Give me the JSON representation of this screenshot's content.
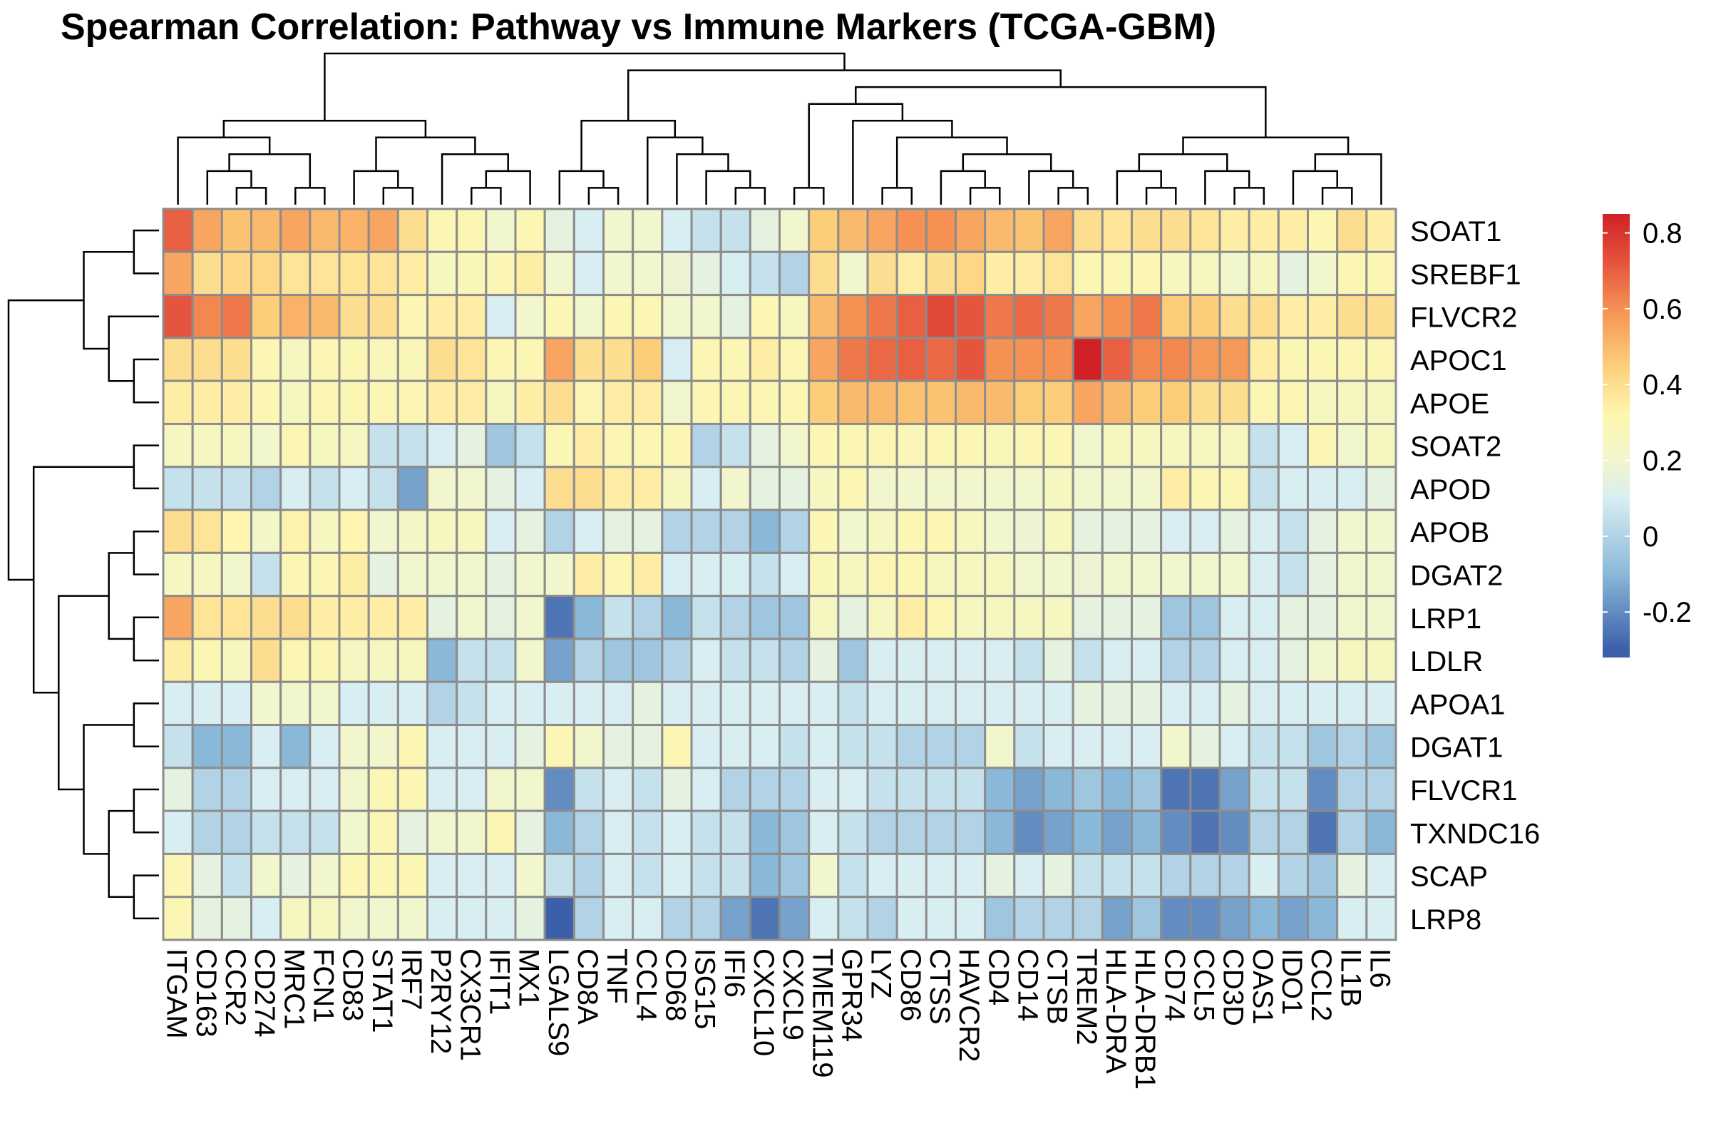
{
  "chart_data": {
    "type": "heatmap",
    "title": "Spearman Correlation: Pathway vs Immune Markers (TCGA-GBM)",
    "xlabel": "",
    "ylabel": "",
    "columns": [
      "ITGAM",
      "CD163",
      "CCR2",
      "CD274",
      "MRC1",
      "FCN1",
      "CD83",
      "STAT1",
      "IRF7",
      "P2RY12",
      "CX3CR1",
      "IFIT1",
      "MX1",
      "LGALS9",
      "CD8A",
      "TNF",
      "CCL4",
      "CD68",
      "ISG15",
      "IFI6",
      "CXCL10",
      "CXCL9",
      "TMEM119",
      "GPR34",
      "LYZ",
      "CD86",
      "CTSS",
      "HAVCR2",
      "CD4",
      "CD14",
      "CTSB",
      "TREM2",
      "HLA-DRA",
      "HLA-DRB1",
      "CD74",
      "CCL5",
      "CD3D",
      "OAS1",
      "IDO1",
      "CCL2",
      "IL1B",
      "IL6"
    ],
    "rows": [
      "SOAT1",
      "SREBF1",
      "FLVCR2",
      "APOC1",
      "APOE",
      "SOAT2",
      "APOD",
      "APOB",
      "DGAT2",
      "LRP1",
      "LDLR",
      "APOA1",
      "DGAT1",
      "FLVCR1",
      "TXNDC16",
      "SCAP",
      "LRP8"
    ],
    "values": [
      [
        0.7,
        0.55,
        0.48,
        0.5,
        0.55,
        0.5,
        0.52,
        0.55,
        0.4,
        0.3,
        0.3,
        0.2,
        0.3,
        0.15,
        0.1,
        0.2,
        0.2,
        0.1,
        0.05,
        0.05,
        0.15,
        0.2,
        0.45,
        0.5,
        0.55,
        0.6,
        0.6,
        0.55,
        0.5,
        0.48,
        0.55,
        0.4,
        0.38,
        0.4,
        0.4,
        0.38,
        0.35,
        0.35,
        0.35,
        0.3,
        0.4,
        0.35
      ],
      [
        0.55,
        0.4,
        0.42,
        0.42,
        0.38,
        0.38,
        0.38,
        0.38,
        0.35,
        0.25,
        0.28,
        0.3,
        0.35,
        0.2,
        0.1,
        0.2,
        0.2,
        0.18,
        0.15,
        0.1,
        0.05,
        0.0,
        0.4,
        0.2,
        0.4,
        0.35,
        0.4,
        0.42,
        0.35,
        0.35,
        0.38,
        0.3,
        0.3,
        0.3,
        0.25,
        0.25,
        0.2,
        0.25,
        0.15,
        0.2,
        0.3,
        0.3
      ],
      [
        0.72,
        0.62,
        0.65,
        0.45,
        0.52,
        0.5,
        0.4,
        0.4,
        0.3,
        0.35,
        0.35,
        0.1,
        0.2,
        0.3,
        0.2,
        0.3,
        0.3,
        0.2,
        0.2,
        0.15,
        0.3,
        0.25,
        0.5,
        0.6,
        0.65,
        0.7,
        0.75,
        0.72,
        0.65,
        0.68,
        0.65,
        0.55,
        0.6,
        0.65,
        0.45,
        0.45,
        0.4,
        0.4,
        0.35,
        0.35,
        0.4,
        0.4
      ],
      [
        0.4,
        0.4,
        0.4,
        0.3,
        0.25,
        0.3,
        0.3,
        0.28,
        0.28,
        0.4,
        0.38,
        0.3,
        0.3,
        0.55,
        0.4,
        0.4,
        0.45,
        0.1,
        0.3,
        0.3,
        0.35,
        0.3,
        0.55,
        0.65,
        0.68,
        0.7,
        0.68,
        0.72,
        0.6,
        0.6,
        0.6,
        0.85,
        0.7,
        0.62,
        0.62,
        0.58,
        0.58,
        0.35,
        0.3,
        0.3,
        0.3,
        0.3
      ],
      [
        0.35,
        0.35,
        0.35,
        0.3,
        0.25,
        0.3,
        0.3,
        0.3,
        0.3,
        0.35,
        0.35,
        0.25,
        0.35,
        0.4,
        0.3,
        0.35,
        0.35,
        0.2,
        0.3,
        0.3,
        0.3,
        0.3,
        0.45,
        0.5,
        0.5,
        0.48,
        0.48,
        0.5,
        0.5,
        0.45,
        0.45,
        0.55,
        0.5,
        0.45,
        0.45,
        0.4,
        0.4,
        0.3,
        0.3,
        0.25,
        0.25,
        0.25
      ],
      [
        0.25,
        0.25,
        0.25,
        0.2,
        0.3,
        0.25,
        0.25,
        0.05,
        0.05,
        0.1,
        0.15,
        -0.05,
        0.05,
        0.3,
        0.35,
        0.3,
        0.3,
        0.3,
        0.0,
        0.05,
        0.15,
        0.2,
        0.3,
        0.3,
        0.3,
        0.28,
        0.3,
        0.3,
        0.28,
        0.3,
        0.3,
        0.2,
        0.25,
        0.25,
        0.25,
        0.25,
        0.25,
        0.05,
        0.1,
        0.3,
        0.2,
        0.25
      ],
      [
        0.05,
        0.05,
        0.05,
        0.0,
        0.1,
        0.05,
        0.1,
        0.05,
        -0.15,
        0.2,
        0.2,
        0.15,
        0.1,
        0.4,
        0.4,
        0.35,
        0.35,
        0.25,
        0.1,
        0.2,
        0.15,
        0.15,
        0.25,
        0.3,
        0.2,
        0.2,
        0.2,
        0.2,
        0.2,
        0.2,
        0.25,
        0.2,
        0.2,
        0.2,
        0.35,
        0.3,
        0.3,
        0.05,
        0.1,
        0.1,
        0.1,
        0.15
      ],
      [
        0.4,
        0.38,
        0.32,
        0.22,
        0.33,
        0.25,
        0.32,
        0.2,
        0.22,
        0.25,
        0.25,
        0.1,
        0.15,
        0.0,
        0.1,
        0.15,
        0.15,
        0.0,
        0.0,
        0.0,
        -0.1,
        0.0,
        0.3,
        0.2,
        0.25,
        0.3,
        0.3,
        0.25,
        0.2,
        0.18,
        0.25,
        0.15,
        0.15,
        0.15,
        0.1,
        0.1,
        0.15,
        0.1,
        0.05,
        0.15,
        0.2,
        0.2
      ],
      [
        0.25,
        0.25,
        0.2,
        0.05,
        0.3,
        0.3,
        0.35,
        0.15,
        0.2,
        0.2,
        0.2,
        0.15,
        0.2,
        0.2,
        0.35,
        0.3,
        0.35,
        0.1,
        0.1,
        0.1,
        0.05,
        0.1,
        0.28,
        0.25,
        0.3,
        0.3,
        0.25,
        0.25,
        0.25,
        0.2,
        0.2,
        0.18,
        0.2,
        0.2,
        0.2,
        0.2,
        0.2,
        0.1,
        0.05,
        0.15,
        0.2,
        0.2
      ],
      [
        0.55,
        0.38,
        0.38,
        0.4,
        0.4,
        0.35,
        0.35,
        0.35,
        0.35,
        0.15,
        0.2,
        0.15,
        0.2,
        -0.25,
        -0.1,
        0.05,
        0.0,
        -0.1,
        0.05,
        0.0,
        -0.05,
        -0.05,
        0.25,
        0.15,
        0.25,
        0.35,
        0.3,
        0.25,
        0.25,
        0.25,
        0.25,
        0.15,
        0.15,
        0.15,
        -0.05,
        -0.05,
        0.1,
        0.1,
        0.15,
        0.15,
        0.2,
        0.2
      ],
      [
        0.35,
        0.3,
        0.25,
        0.4,
        0.3,
        0.3,
        0.25,
        0.25,
        0.25,
        -0.1,
        0.05,
        0.05,
        0.2,
        -0.15,
        0.0,
        -0.05,
        -0.05,
        0.0,
        0.1,
        0.05,
        0.05,
        0.0,
        0.15,
        -0.05,
        0.1,
        0.1,
        0.1,
        0.1,
        0.1,
        0.05,
        0.15,
        0.05,
        0.1,
        0.1,
        0.0,
        0.0,
        0.1,
        0.1,
        0.15,
        0.2,
        0.25,
        0.25
      ],
      [
        0.1,
        0.1,
        0.1,
        0.2,
        0.2,
        0.2,
        0.1,
        0.1,
        0.1,
        0.0,
        0.05,
        0.1,
        0.1,
        0.1,
        0.1,
        0.1,
        0.15,
        0.1,
        0.1,
        0.1,
        0.1,
        0.1,
        0.1,
        0.05,
        0.1,
        0.1,
        0.1,
        0.1,
        0.1,
        0.1,
        0.1,
        0.15,
        0.15,
        0.15,
        0.1,
        0.1,
        0.15,
        0.1,
        0.1,
        0.1,
        0.1,
        0.1
      ],
      [
        0.05,
        -0.1,
        -0.1,
        0.1,
        -0.1,
        0.1,
        0.2,
        0.2,
        0.3,
        0.1,
        0.1,
        0.1,
        0.15,
        0.3,
        0.2,
        0.15,
        0.15,
        0.3,
        0.1,
        0.1,
        0.1,
        0.05,
        0.1,
        0.05,
        0.05,
        0.0,
        0.0,
        0.0,
        0.2,
        0.05,
        0.1,
        0.1,
        0.1,
        0.1,
        0.2,
        0.15,
        0.1,
        0.05,
        0.05,
        -0.05,
        0.0,
        -0.05
      ],
      [
        0.15,
        0.0,
        0.0,
        0.1,
        0.1,
        0.1,
        0.2,
        0.3,
        0.3,
        0.1,
        0.1,
        0.2,
        0.2,
        -0.2,
        0.05,
        0.1,
        0.05,
        0.15,
        0.1,
        0.0,
        0.0,
        0.0,
        0.1,
        0.1,
        0.05,
        0.05,
        0.05,
        0.05,
        -0.1,
        -0.15,
        -0.1,
        -0.05,
        -0.1,
        -0.05,
        -0.25,
        -0.25,
        -0.15,
        0.05,
        0.05,
        -0.2,
        0.0,
        0.0
      ],
      [
        0.1,
        0.0,
        0.0,
        0.05,
        0.05,
        0.05,
        0.2,
        0.3,
        0.15,
        0.2,
        0.2,
        0.3,
        0.15,
        -0.1,
        0.0,
        0.1,
        0.05,
        0.1,
        0.05,
        0.05,
        -0.1,
        -0.05,
        0.1,
        0.05,
        0.0,
        0.0,
        0.0,
        0.0,
        -0.1,
        -0.2,
        -0.15,
        -0.1,
        -0.15,
        -0.1,
        -0.2,
        -0.25,
        -0.2,
        0.0,
        0.0,
        -0.25,
        0.0,
        -0.1
      ],
      [
        0.3,
        0.15,
        0.05,
        0.2,
        0.15,
        0.2,
        0.3,
        0.3,
        0.3,
        0.1,
        0.1,
        0.1,
        0.2,
        0.05,
        0.0,
        0.1,
        0.05,
        0.1,
        0.05,
        0.05,
        -0.1,
        -0.05,
        0.2,
        0.05,
        0.1,
        0.1,
        0.1,
        0.1,
        0.15,
        0.1,
        0.15,
        0.05,
        0.05,
        0.05,
        0.0,
        0.0,
        0.0,
        0.1,
        0.0,
        -0.05,
        0.15,
        0.1
      ],
      [
        0.3,
        0.15,
        0.15,
        0.1,
        0.25,
        0.25,
        0.2,
        0.2,
        0.2,
        0.1,
        0.1,
        0.1,
        0.15,
        -0.3,
        0.0,
        0.1,
        0.1,
        0.0,
        0.0,
        -0.15,
        -0.25,
        -0.15,
        0.1,
        0.05,
        0.0,
        0.1,
        0.1,
        0.1,
        -0.05,
        0.0,
        0.0,
        0.0,
        -0.15,
        -0.05,
        -0.2,
        -0.2,
        -0.15,
        -0.1,
        -0.15,
        -0.1,
        0.1,
        0.1
      ]
    ],
    "color_scale": {
      "min": -0.32,
      "max": 0.85,
      "stops": [
        {
          "v": -0.3,
          "c": "#3b5fa9"
        },
        {
          "v": -0.1,
          "c": "#8ab8d8"
        },
        {
          "v": 0.1,
          "c": "#d9eef2"
        },
        {
          "v": 0.2,
          "c": "#f1f6cc"
        },
        {
          "v": 0.32,
          "c": "#fef6b0"
        },
        {
          "v": 0.45,
          "c": "#fdce7a"
        },
        {
          "v": 0.6,
          "c": "#f49153"
        },
        {
          "v": 0.72,
          "c": "#e5553d"
        },
        {
          "v": 0.85,
          "c": "#cf2126"
        }
      ],
      "legend_ticks": [
        0.8,
        0.6,
        0.4,
        0.2,
        0,
        -0.2
      ],
      "legend_tick_labels": [
        "0.8",
        "0.6",
        "0.4",
        "0.2",
        "0",
        "-0.2"
      ]
    },
    "cell_border_color": "#8c8c8c",
    "dendrogram_line_color": "#000000"
  }
}
